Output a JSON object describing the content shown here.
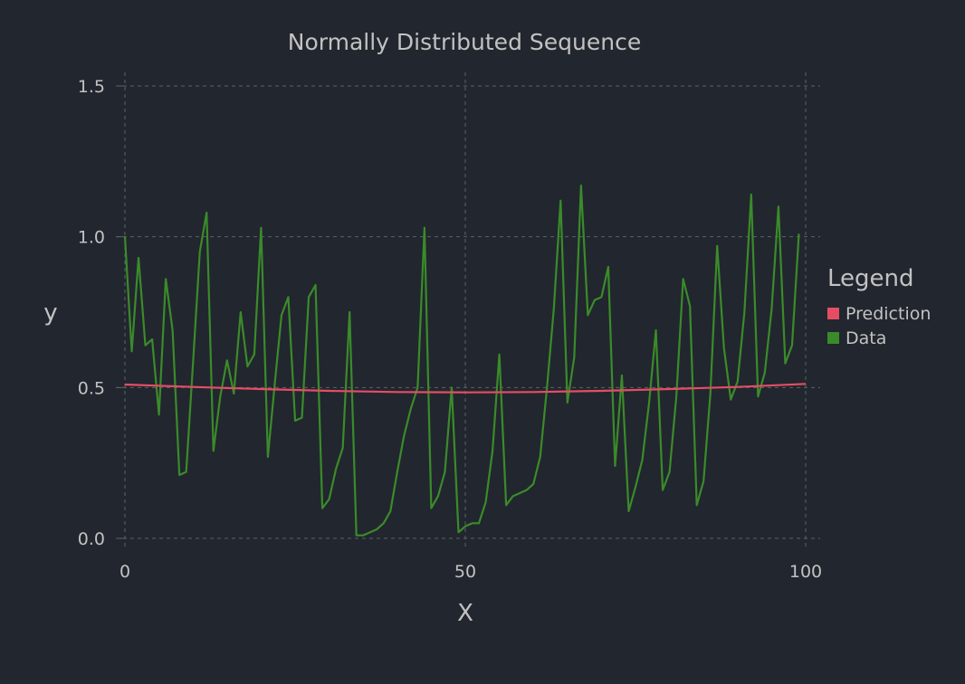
{
  "chart_data": {
    "type": "line",
    "title": "Normally Distributed Sequence",
    "xlabel": "X",
    "ylabel": "y",
    "xlim": [
      0,
      100
    ],
    "ylim": [
      0,
      1.5
    ],
    "x_ticks": [
      0,
      50,
      100
    ],
    "y_ticks": [
      "0.0",
      "0.5",
      "1.0",
      "1.5"
    ],
    "grid": true,
    "legend": {
      "title": "Legend",
      "position": "right",
      "entries": [
        {
          "name": "Prediction",
          "color": "#e64d65"
        },
        {
          "name": "Data",
          "color": "#3a8b2a"
        }
      ]
    },
    "series": [
      {
        "name": "Prediction",
        "color": "#e64d65",
        "x": [
          0,
          10,
          20,
          30,
          40,
          50,
          60,
          70,
          80,
          90,
          100
        ],
        "y": [
          0.51,
          0.502,
          0.495,
          0.489,
          0.485,
          0.484,
          0.485,
          0.489,
          0.495,
          0.502,
          0.512
        ]
      },
      {
        "name": "Data",
        "color": "#3a8b2a",
        "x": [
          0,
          1,
          2,
          3,
          4,
          5,
          6,
          7,
          8,
          9,
          10,
          11,
          12,
          13,
          14,
          15,
          16,
          17,
          18,
          19,
          20,
          21,
          22,
          23,
          24,
          25,
          26,
          27,
          28,
          29,
          30,
          31,
          32,
          33,
          34,
          35,
          36,
          37,
          38,
          39,
          40,
          41,
          42,
          43,
          44,
          45,
          46,
          47,
          48,
          49,
          50,
          51,
          52,
          53,
          54,
          55,
          56,
          57,
          58,
          59,
          60,
          61,
          62,
          63,
          64,
          65,
          66,
          67,
          68,
          69,
          70,
          71,
          72,
          73,
          74,
          75,
          76,
          77,
          78,
          79,
          80,
          81,
          82,
          83,
          84,
          85,
          86,
          87,
          88,
          89,
          90,
          91,
          92,
          93,
          94,
          95,
          96,
          97,
          98,
          99
        ],
        "y": [
          1.0,
          0.62,
          0.93,
          0.64,
          0.66,
          0.41,
          0.86,
          0.69,
          0.21,
          0.22,
          0.58,
          0.95,
          1.08,
          0.29,
          0.47,
          0.59,
          0.48,
          0.75,
          0.57,
          0.61,
          1.03,
          0.27,
          0.51,
          0.74,
          0.8,
          0.39,
          0.4,
          0.8,
          0.84,
          0.1,
          0.13,
          0.23,
          0.3,
          0.75,
          0.01,
          0.01,
          0.02,
          0.03,
          0.05,
          0.09,
          0.22,
          0.34,
          0.43,
          0.5,
          1.03,
          0.1,
          0.14,
          0.22,
          0.5,
          0.02,
          0.04,
          0.05,
          0.05,
          0.12,
          0.29,
          0.61,
          0.11,
          0.14,
          0.15,
          0.16,
          0.18,
          0.27,
          0.5,
          0.76,
          1.12,
          0.45,
          0.6,
          1.17,
          0.74,
          0.79,
          0.8,
          0.9,
          0.24,
          0.54,
          0.09,
          0.17,
          0.26,
          0.45,
          0.69,
          0.16,
          0.22,
          0.47,
          0.86,
          0.77,
          0.11,
          0.19,
          0.48,
          0.97,
          0.63,
          0.46,
          0.52,
          0.75,
          1.14,
          0.47,
          0.55,
          0.76,
          1.1,
          0.58,
          0.64,
          1.01
        ]
      }
    ]
  }
}
